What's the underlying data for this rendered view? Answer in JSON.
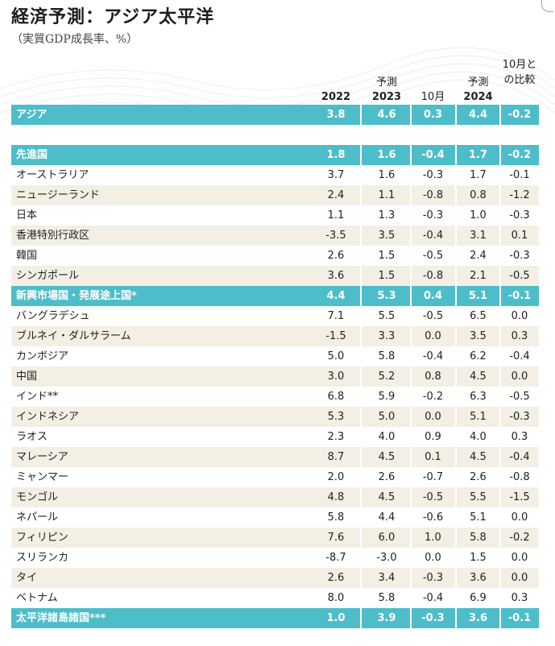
{
  "title": "経済予測：アジア太平洋",
  "subtitle": "（実質GDP成長率、%）",
  "colors": {
    "band": "#4dbec9",
    "alt_row": "#f3efe4",
    "forecast_shade": "#eaf0f5"
  },
  "chart_data": {
    "type": "table",
    "headers": {
      "y2022": "2022",
      "forecast_label_2023": "予測",
      "y2023": "2023",
      "oct_change": "10月",
      "forecast_label_2024": "予測",
      "y2024": "2024",
      "oct_compare_line1": "10月と",
      "oct_compare_line2": "の比較"
    },
    "rows": [
      {
        "kind": "band",
        "name": "アジア",
        "v2022": "3.8",
        "v2023": "4.6",
        "c2023": "0.3",
        "v2024": "4.4",
        "c2024": "-0.2"
      },
      {
        "kind": "blank",
        "name": "",
        "v2022": "",
        "v2023": "",
        "c2023": "",
        "v2024": "",
        "c2024": ""
      },
      {
        "kind": "band",
        "name": "先進国",
        "v2022": "1.8",
        "v2023": "1.6",
        "c2023": "-0.4",
        "v2024": "1.7",
        "c2024": "-0.2"
      },
      {
        "kind": "white",
        "name": "オーストラリア",
        "v2022": "3.7",
        "v2023": "1.6",
        "c2023": "-0.3",
        "v2024": "1.7",
        "c2024": "-0.1"
      },
      {
        "kind": "alt",
        "name": "ニュージーランド",
        "v2022": "2.4",
        "v2023": "1.1",
        "c2023": "-0.8",
        "v2024": "0.8",
        "c2024": "-1.2"
      },
      {
        "kind": "white",
        "name": "日本",
        "v2022": "1.1",
        "v2023": "1.3",
        "c2023": "-0.3",
        "v2024": "1.0",
        "c2024": "-0.3"
      },
      {
        "kind": "alt",
        "name": "香港特別行政区",
        "v2022": "-3.5",
        "v2023": "3.5",
        "c2023": "-0.4",
        "v2024": "3.1",
        "c2024": "0.1"
      },
      {
        "kind": "white",
        "name": "韓国",
        "v2022": "2.6",
        "v2023": "1.5",
        "c2023": "-0.5",
        "v2024": "2.4",
        "c2024": "-0.3"
      },
      {
        "kind": "alt",
        "name": "シンガポール",
        "v2022": "3.6",
        "v2023": "1.5",
        "c2023": "-0.8",
        "v2024": "2.1",
        "c2024": "-0.5"
      },
      {
        "kind": "band",
        "name": "新興市場国・発展途上国*",
        "v2022": "4.4",
        "v2023": "5.3",
        "c2023": "0.4",
        "v2024": "5.1",
        "c2024": "-0.1"
      },
      {
        "kind": "white",
        "name": "バングラデシュ",
        "v2022": "7.1",
        "v2023": "5.5",
        "c2023": "-0.5",
        "v2024": "6.5",
        "c2024": "0.0"
      },
      {
        "kind": "alt",
        "name": "ブルネイ・ダルサラーム",
        "v2022": "-1.5",
        "v2023": "3.3",
        "c2023": "0.0",
        "v2024": "3.5",
        "c2024": "0.3"
      },
      {
        "kind": "white",
        "name": "カンボジア",
        "v2022": "5.0",
        "v2023": "5.8",
        "c2023": "-0.4",
        "v2024": "6.2",
        "c2024": "-0.4"
      },
      {
        "kind": "alt",
        "name": "中国",
        "v2022": "3.0",
        "v2023": "5.2",
        "c2023": "0.8",
        "v2024": "4.5",
        "c2024": "0.0"
      },
      {
        "kind": "white",
        "name": "インド**",
        "v2022": "6.8",
        "v2023": "5.9",
        "c2023": "-0.2",
        "v2024": "6.3",
        "c2024": "-0.5"
      },
      {
        "kind": "alt",
        "name": "インドネシア",
        "v2022": "5.3",
        "v2023": "5.0",
        "c2023": "0.0",
        "v2024": "5.1",
        "c2024": "-0.3"
      },
      {
        "kind": "white",
        "name": "ラオス",
        "v2022": "2.3",
        "v2023": "4.0",
        "c2023": "0.9",
        "v2024": "4.0",
        "c2024": "0.3"
      },
      {
        "kind": "alt",
        "name": "マレーシア",
        "v2022": "8.7",
        "v2023": "4.5",
        "c2023": "0.1",
        "v2024": "4.5",
        "c2024": "-0.4"
      },
      {
        "kind": "white",
        "name": "ミャンマー",
        "v2022": "2.0",
        "v2023": "2.6",
        "c2023": "-0.7",
        "v2024": "2.6",
        "c2024": "-0.8"
      },
      {
        "kind": "alt",
        "name": "モンゴル",
        "v2022": "4.8",
        "v2023": "4.5",
        "c2023": "-0.5",
        "v2024": "5.5",
        "c2024": "-1.5"
      },
      {
        "kind": "white",
        "name": "ネパール",
        "v2022": "5.8",
        "v2023": "4.4",
        "c2023": "-0.6",
        "v2024": "5.1",
        "c2024": "0.0"
      },
      {
        "kind": "alt",
        "name": "フィリピン",
        "v2022": "7.6",
        "v2023": "6.0",
        "c2023": "1.0",
        "v2024": "5.8",
        "c2024": "-0.2"
      },
      {
        "kind": "white",
        "name": "スリランカ",
        "v2022": "-8.7",
        "v2023": "-3.0",
        "c2023": "0.0",
        "v2024": "1.5",
        "c2024": "0.0"
      },
      {
        "kind": "alt",
        "name": "タイ",
        "v2022": "2.6",
        "v2023": "3.4",
        "c2023": "-0.3",
        "v2024": "3.6",
        "c2024": "0.0"
      },
      {
        "kind": "white",
        "name": "ベトナム",
        "v2022": "8.0",
        "v2023": "5.8",
        "c2023": "-0.4",
        "v2024": "6.9",
        "c2024": "0.3"
      },
      {
        "kind": "band",
        "name": "太平洋諸島諸国***",
        "v2022": "1.0",
        "v2023": "3.9",
        "c2023": "-0.3",
        "v2024": "3.6",
        "c2024": "-0.1"
      }
    ]
  }
}
